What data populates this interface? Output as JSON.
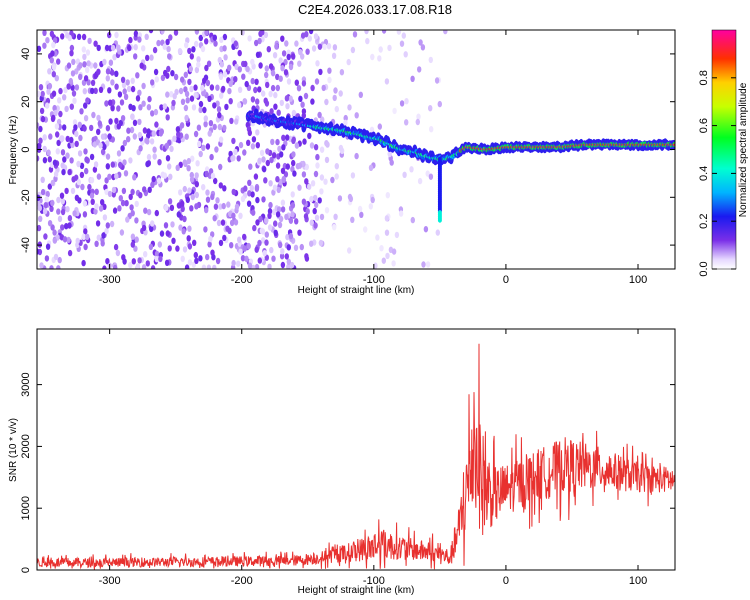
{
  "title": "C2E4.2026.033.17.08.R18",
  "chart_data": [
    {
      "type": "heatmap",
      "xlabel": "Height of straight line (km)",
      "ylabel": "Frequency (Hz)",
      "xlim": [
        -355,
        128
      ],
      "ylim": [
        -50,
        50
      ],
      "xticks": [
        -300,
        -200,
        -100,
        0,
        100
      ],
      "yticks": [
        -40,
        -20,
        0,
        20,
        40
      ],
      "colorbar": {
        "label": "Normalized spectral amplitude",
        "ticks": [
          0.0,
          0.2,
          0.4,
          0.6,
          0.8
        ],
        "range": [
          0,
          1
        ]
      },
      "ridge": [
        {
          "x": -190,
          "y": 14
        },
        {
          "x": -175,
          "y": 12
        },
        {
          "x": -160,
          "y": 11
        },
        {
          "x": -140,
          "y": 9
        },
        {
          "x": -125,
          "y": 8
        },
        {
          "x": -110,
          "y": 6
        },
        {
          "x": -95,
          "y": 4
        },
        {
          "x": -80,
          "y": 0
        },
        {
          "x": -70,
          "y": -1
        },
        {
          "x": -60,
          "y": -3
        },
        {
          "x": -52,
          "y": -4
        },
        {
          "x": -45,
          "y": -4
        },
        {
          "x": -38,
          "y": -2
        },
        {
          "x": -30,
          "y": 1
        },
        {
          "x": -15,
          "y": 0
        },
        {
          "x": 0,
          "y": 1
        },
        {
          "x": 20,
          "y": 1
        },
        {
          "x": 40,
          "y": 1
        },
        {
          "x": 60,
          "y": 2
        },
        {
          "x": 80,
          "y": 2
        },
        {
          "x": 100,
          "y": 2
        },
        {
          "x": 128,
          "y": 2
        }
      ]
    },
    {
      "type": "line",
      "xlabel": "Height of straight line (km)",
      "ylabel": "SNR (10 * v/v)",
      "xlim": [
        -355,
        128
      ],
      "ylim": [
        0,
        3900
      ],
      "xticks": [
        -300,
        -200,
        -100,
        0,
        100
      ],
      "yticks": [
        0,
        1000,
        2000,
        3000
      ],
      "series": [
        {
          "color": "#e8312f",
          "envelope": [
            {
              "x": -355,
              "mean": 120,
              "spread": 110
            },
            {
              "x": -300,
              "mean": 120,
              "spread": 110
            },
            {
              "x": -250,
              "mean": 130,
              "spread": 110
            },
            {
              "x": -200,
              "mean": 140,
              "spread": 120
            },
            {
              "x": -160,
              "mean": 150,
              "spread": 120
            },
            {
              "x": -140,
              "mean": 200,
              "spread": 150
            },
            {
              "x": -120,
              "mean": 280,
              "spread": 220
            },
            {
              "x": -105,
              "mean": 350,
              "spread": 300
            },
            {
              "x": -95,
              "mean": 420,
              "spread": 450
            },
            {
              "x": -85,
              "mean": 380,
              "spread": 300
            },
            {
              "x": -70,
              "mean": 330,
              "spread": 250
            },
            {
              "x": -55,
              "mean": 280,
              "spread": 250
            },
            {
              "x": -42,
              "mean": 200,
              "spread": 200
            },
            {
              "x": -35,
              "mean": 700,
              "spread": 600
            },
            {
              "x": -28,
              "mean": 1500,
              "spread": 1200
            },
            {
              "x": -24,
              "mean": 2200,
              "spread": 1700
            },
            {
              "x": -18,
              "mean": 1400,
              "spread": 1300
            },
            {
              "x": -10,
              "mean": 1200,
              "spread": 700
            },
            {
              "x": 0,
              "mean": 1300,
              "spread": 600
            },
            {
              "x": 20,
              "mean": 1500,
              "spread": 600
            },
            {
              "x": 45,
              "mean": 1700,
              "spread": 650
            },
            {
              "x": 70,
              "mean": 1650,
              "spread": 500
            },
            {
              "x": 100,
              "mean": 1500,
              "spread": 350
            },
            {
              "x": 128,
              "mean": 1450,
              "spread": 300
            }
          ]
        }
      ]
    }
  ]
}
